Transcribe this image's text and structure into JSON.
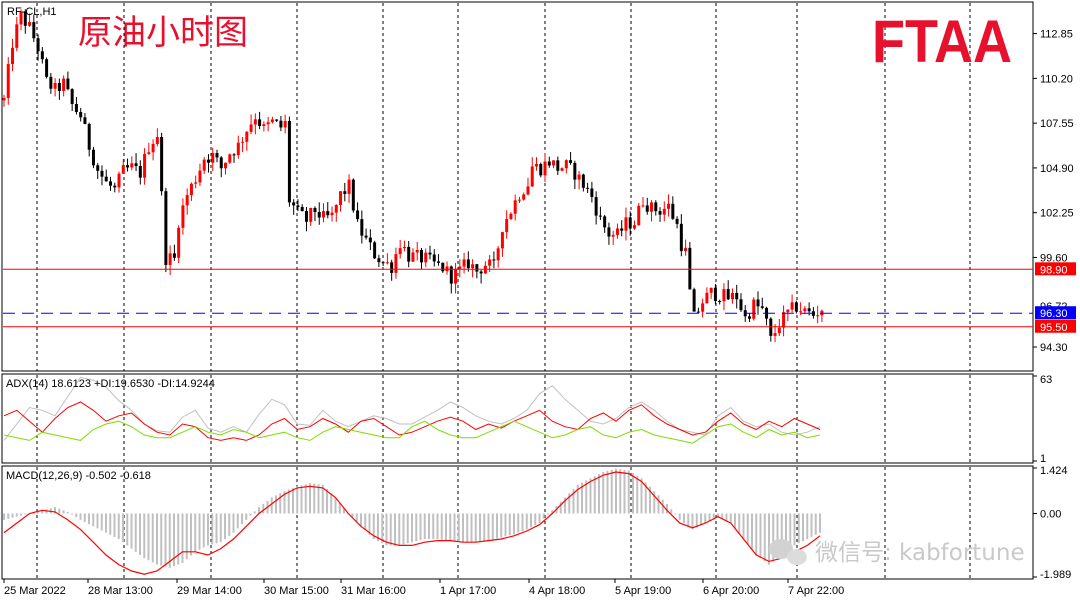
{
  "chart_data": [
    {
      "type": "candlestick",
      "symbol_label": "RF-CL,H1",
      "title": "原油小时图",
      "brand": "FTAA",
      "price_axis_ticks": [
        112.85,
        110.2,
        107.55,
        104.9,
        102.25,
        99.6,
        94.3
      ],
      "ylim": [
        93.0,
        114.6
      ],
      "x_tick_labels": [
        "25 Mar 2022",
        "28 Mar 13:00",
        "29 Mar 14:00",
        "30 Mar 15:00",
        "31 Mar 16:00",
        "1 Apr 17:00",
        "4 Apr 18:00",
        "5 Apr 19:00",
        "6 Apr 20:00",
        "7 Apr 22:00"
      ],
      "close_path": [
        [
          0,
          108.9
        ],
        [
          2,
          112.3
        ],
        [
          4,
          113.9
        ],
        [
          6,
          113.2
        ],
        [
          8,
          112.0
        ],
        [
          10,
          110.0
        ],
        [
          12,
          109.5
        ],
        [
          14,
          109.9
        ],
        [
          16,
          108.6
        ],
        [
          18,
          108.0
        ],
        [
          20,
          106.2
        ],
        [
          22,
          104.8
        ],
        [
          24,
          104.0
        ],
        [
          26,
          103.6
        ],
        [
          28,
          104.7
        ],
        [
          30,
          104.9
        ],
        [
          32,
          104.6
        ],
        [
          34,
          106.2
        ],
        [
          36,
          106.9
        ],
        [
          38,
          99.6
        ],
        [
          40,
          99.5
        ],
        [
          41,
          101.8
        ],
        [
          43,
          103.3
        ],
        [
          45,
          104.3
        ],
        [
          47,
          105.5
        ],
        [
          49,
          105.6
        ],
        [
          51,
          104.9
        ],
        [
          53,
          105.8
        ],
        [
          55,
          106.2
        ],
        [
          57,
          107.2
        ],
        [
          59,
          108.0
        ],
        [
          61,
          107.2
        ],
        [
          63,
          107.6
        ],
        [
          65,
          107.3
        ],
        [
          66,
          107.5
        ],
        [
          67,
          103.0
        ],
        [
          69,
          102.2
        ],
        [
          71,
          101.8
        ],
        [
          73,
          102.4
        ],
        [
          75,
          101.9
        ],
        [
          77,
          102.0
        ],
        [
          79,
          103.3
        ],
        [
          81,
          103.8
        ],
        [
          83,
          101.5
        ],
        [
          85,
          100.6
        ],
        [
          87,
          99.8
        ],
        [
          89,
          99.3
        ],
        [
          91,
          99.1
        ],
        [
          93,
          100.5
        ],
        [
          95,
          99.7
        ],
        [
          97,
          99.6
        ],
        [
          99,
          99.5
        ],
        [
          101,
          99.2
        ],
        [
          103,
          99.0
        ],
        [
          105,
          98.5
        ],
        [
          107,
          98.8
        ],
        [
          109,
          99.3
        ],
        [
          111,
          98.8
        ],
        [
          113,
          99.2
        ],
        [
          115,
          99.0
        ],
        [
          117,
          101.5
        ],
        [
          119,
          102.4
        ],
        [
          121,
          103.4
        ],
        [
          123,
          104.0
        ],
        [
          124,
          105.0
        ],
        [
          126,
          104.9
        ],
        [
          128,
          105.3
        ],
        [
          130,
          104.9
        ],
        [
          132,
          105.0
        ],
        [
          134,
          104.6
        ],
        [
          136,
          103.9
        ],
        [
          138,
          103.2
        ],
        [
          140,
          101.8
        ],
        [
          142,
          101.0
        ],
        [
          144,
          100.9
        ],
        [
          146,
          101.6
        ],
        [
          148,
          101.7
        ],
        [
          150,
          103.0
        ],
        [
          152,
          102.5
        ],
        [
          154,
          102.4
        ],
        [
          156,
          102.6
        ],
        [
          158,
          101.5
        ],
        [
          159,
          100.4
        ],
        [
          160,
          99.9
        ],
        [
          161,
          97.5
        ],
        [
          162,
          96.0
        ],
        [
          164,
          97.0
        ],
        [
          166,
          97.5
        ],
        [
          168,
          97.4
        ],
        [
          170,
          97.2
        ],
        [
          172,
          97.3
        ],
        [
          174,
          96.0
        ],
        [
          176,
          96.8
        ],
        [
          178,
          96.5
        ],
        [
          179,
          95.7
        ],
        [
          180,
          94.7
        ],
        [
          182,
          95.7
        ],
        [
          184,
          96.3
        ],
        [
          186,
          96.7
        ],
        [
          188,
          96.4
        ],
        [
          190,
          96.2
        ],
        [
          192,
          96.6
        ]
      ],
      "horizontal_levels": [
        {
          "value": 98.9,
          "label": "98.90",
          "color": "#ff0000",
          "style": "solid"
        },
        {
          "value": 95.5,
          "label": "95.50",
          "color": "#ff0000",
          "style": "solid"
        },
        {
          "value": 96.3,
          "label": "96.30",
          "color": "#0000ff",
          "style": "dashed"
        }
      ],
      "price_markers": [
        {
          "value": 96.72,
          "label": "96.72",
          "color": "#000000"
        }
      ],
      "colors": {
        "bull": "#ff0000",
        "bear": "#000000"
      }
    },
    {
      "type": "line",
      "title": "ADX(14) 18.6123 +DI:19.6530 -DI:14.9244",
      "ylim": [
        1,
        63
      ],
      "axis_ticks": [
        63,
        1
      ],
      "series": [
        {
          "color": "#c0c0c0",
          "values": [
            16,
            28,
            40,
            38,
            34,
            48,
            62,
            60,
            55,
            45,
            38,
            28,
            23,
            22,
            33,
            38,
            25,
            22,
            26,
            22,
            35,
            46,
            42,
            28,
            27,
            38,
            30,
            26,
            30,
            34,
            32,
            28,
            28,
            33,
            38,
            44,
            40,
            34,
            30,
            28,
            32,
            38,
            50,
            56,
            46,
            38,
            30,
            28,
            32,
            40,
            44,
            38,
            30,
            24,
            22,
            20,
            34,
            40,
            30,
            26,
            28,
            22,
            20,
            22,
            26
          ]
        },
        {
          "color": "#ff0000",
          "values": [
            34,
            38,
            30,
            22,
            32,
            40,
            44,
            38,
            30,
            34,
            36,
            28,
            22,
            20,
            28,
            26,
            18,
            16,
            18,
            16,
            20,
            28,
            32,
            24,
            26,
            32,
            28,
            22,
            30,
            32,
            26,
            20,
            22,
            26,
            30,
            33,
            30,
            24,
            28,
            25,
            30,
            34,
            38,
            30,
            26,
            24,
            32,
            36,
            30,
            38,
            42,
            34,
            28,
            24,
            20,
            22,
            30,
            36,
            28,
            24,
            30,
            26,
            32,
            28,
            24
          ]
        },
        {
          "color": "#7fdc00",
          "values": [
            20,
            18,
            16,
            22,
            20,
            18,
            16,
            24,
            28,
            30,
            26,
            20,
            18,
            18,
            22,
            26,
            22,
            20,
            24,
            22,
            18,
            20,
            22,
            18,
            16,
            22,
            26,
            24,
            22,
            20,
            18,
            18,
            26,
            30,
            24,
            20,
            18,
            18,
            22,
            26,
            30,
            26,
            22,
            18,
            20,
            24,
            26,
            20,
            18,
            22,
            24,
            20,
            18,
            16,
            14,
            20,
            26,
            28,
            22,
            18,
            24,
            20,
            22,
            18,
            20
          ]
        }
      ]
    },
    {
      "type": "macd",
      "title": "MACD(12,26,9) -0.502 -0.618",
      "ylim": [
        -1.989,
        1.424
      ],
      "axis_ticks": [
        1.424,
        0.0,
        -1.989
      ],
      "histogram": [
        -0.2,
        -0.1,
        0.0,
        0.1,
        0.2,
        0.05,
        -0.2,
        -0.4,
        -0.6,
        -0.8,
        -1.1,
        -1.4,
        -1.6,
        -1.7,
        -1.55,
        -1.2,
        -1.0,
        -0.9,
        -0.6,
        -0.2,
        0.2,
        0.5,
        0.7,
        0.85,
        0.95,
        0.9,
        0.5,
        0.0,
        -0.4,
        -0.8,
        -1.0,
        -1.0,
        -0.9,
        -0.8,
        -0.8,
        -0.85,
        -0.9,
        -0.9,
        -0.85,
        -0.75,
        -0.65,
        -0.5,
        -0.3,
        0.1,
        0.5,
        0.9,
        1.1,
        1.3,
        1.4,
        1.35,
        1.1,
        0.7,
        0.3,
        -0.2,
        -0.5,
        -0.3,
        -0.1,
        -0.3,
        -0.8,
        -1.3,
        -1.6,
        -1.3,
        -1.0,
        -0.8,
        -0.6
      ],
      "signal": [
        -0.6,
        -0.3,
        0.0,
        0.1,
        0.05,
        -0.2,
        -0.5,
        -0.9,
        -1.3,
        -1.6,
        -1.8,
        -1.9,
        -1.8,
        -1.5,
        -1.2,
        -1.2,
        -1.3,
        -1.1,
        -0.8,
        -0.4,
        0.0,
        0.3,
        0.6,
        0.8,
        0.85,
        0.8,
        0.5,
        0.0,
        -0.4,
        -0.7,
        -0.9,
        -1.0,
        -1.0,
        -0.9,
        -0.85,
        -0.85,
        -0.9,
        -0.9,
        -0.85,
        -0.8,
        -0.7,
        -0.55,
        -0.35,
        0.0,
        0.4,
        0.75,
        1.0,
        1.2,
        1.3,
        1.25,
        1.0,
        0.55,
        0.1,
        -0.3,
        -0.45,
        -0.3,
        -0.1,
        -0.3,
        -0.8,
        -1.3,
        -1.5,
        -1.4,
        -1.2,
        -1.0,
        -0.7
      ],
      "colors": {
        "histogram": "#c0c0c0",
        "signal": "#ff0000"
      }
    }
  ],
  "watermark": "微信号: kabfortune",
  "y_ticks": {
    "main": [
      "112.85",
      "110.20",
      "107.55",
      "104.90",
      "102.25",
      "99.60",
      "94.30"
    ],
    "adx": [
      "63",
      "1"
    ],
    "macd": [
      "1.424",
      "0.00",
      "-1.989"
    ]
  }
}
